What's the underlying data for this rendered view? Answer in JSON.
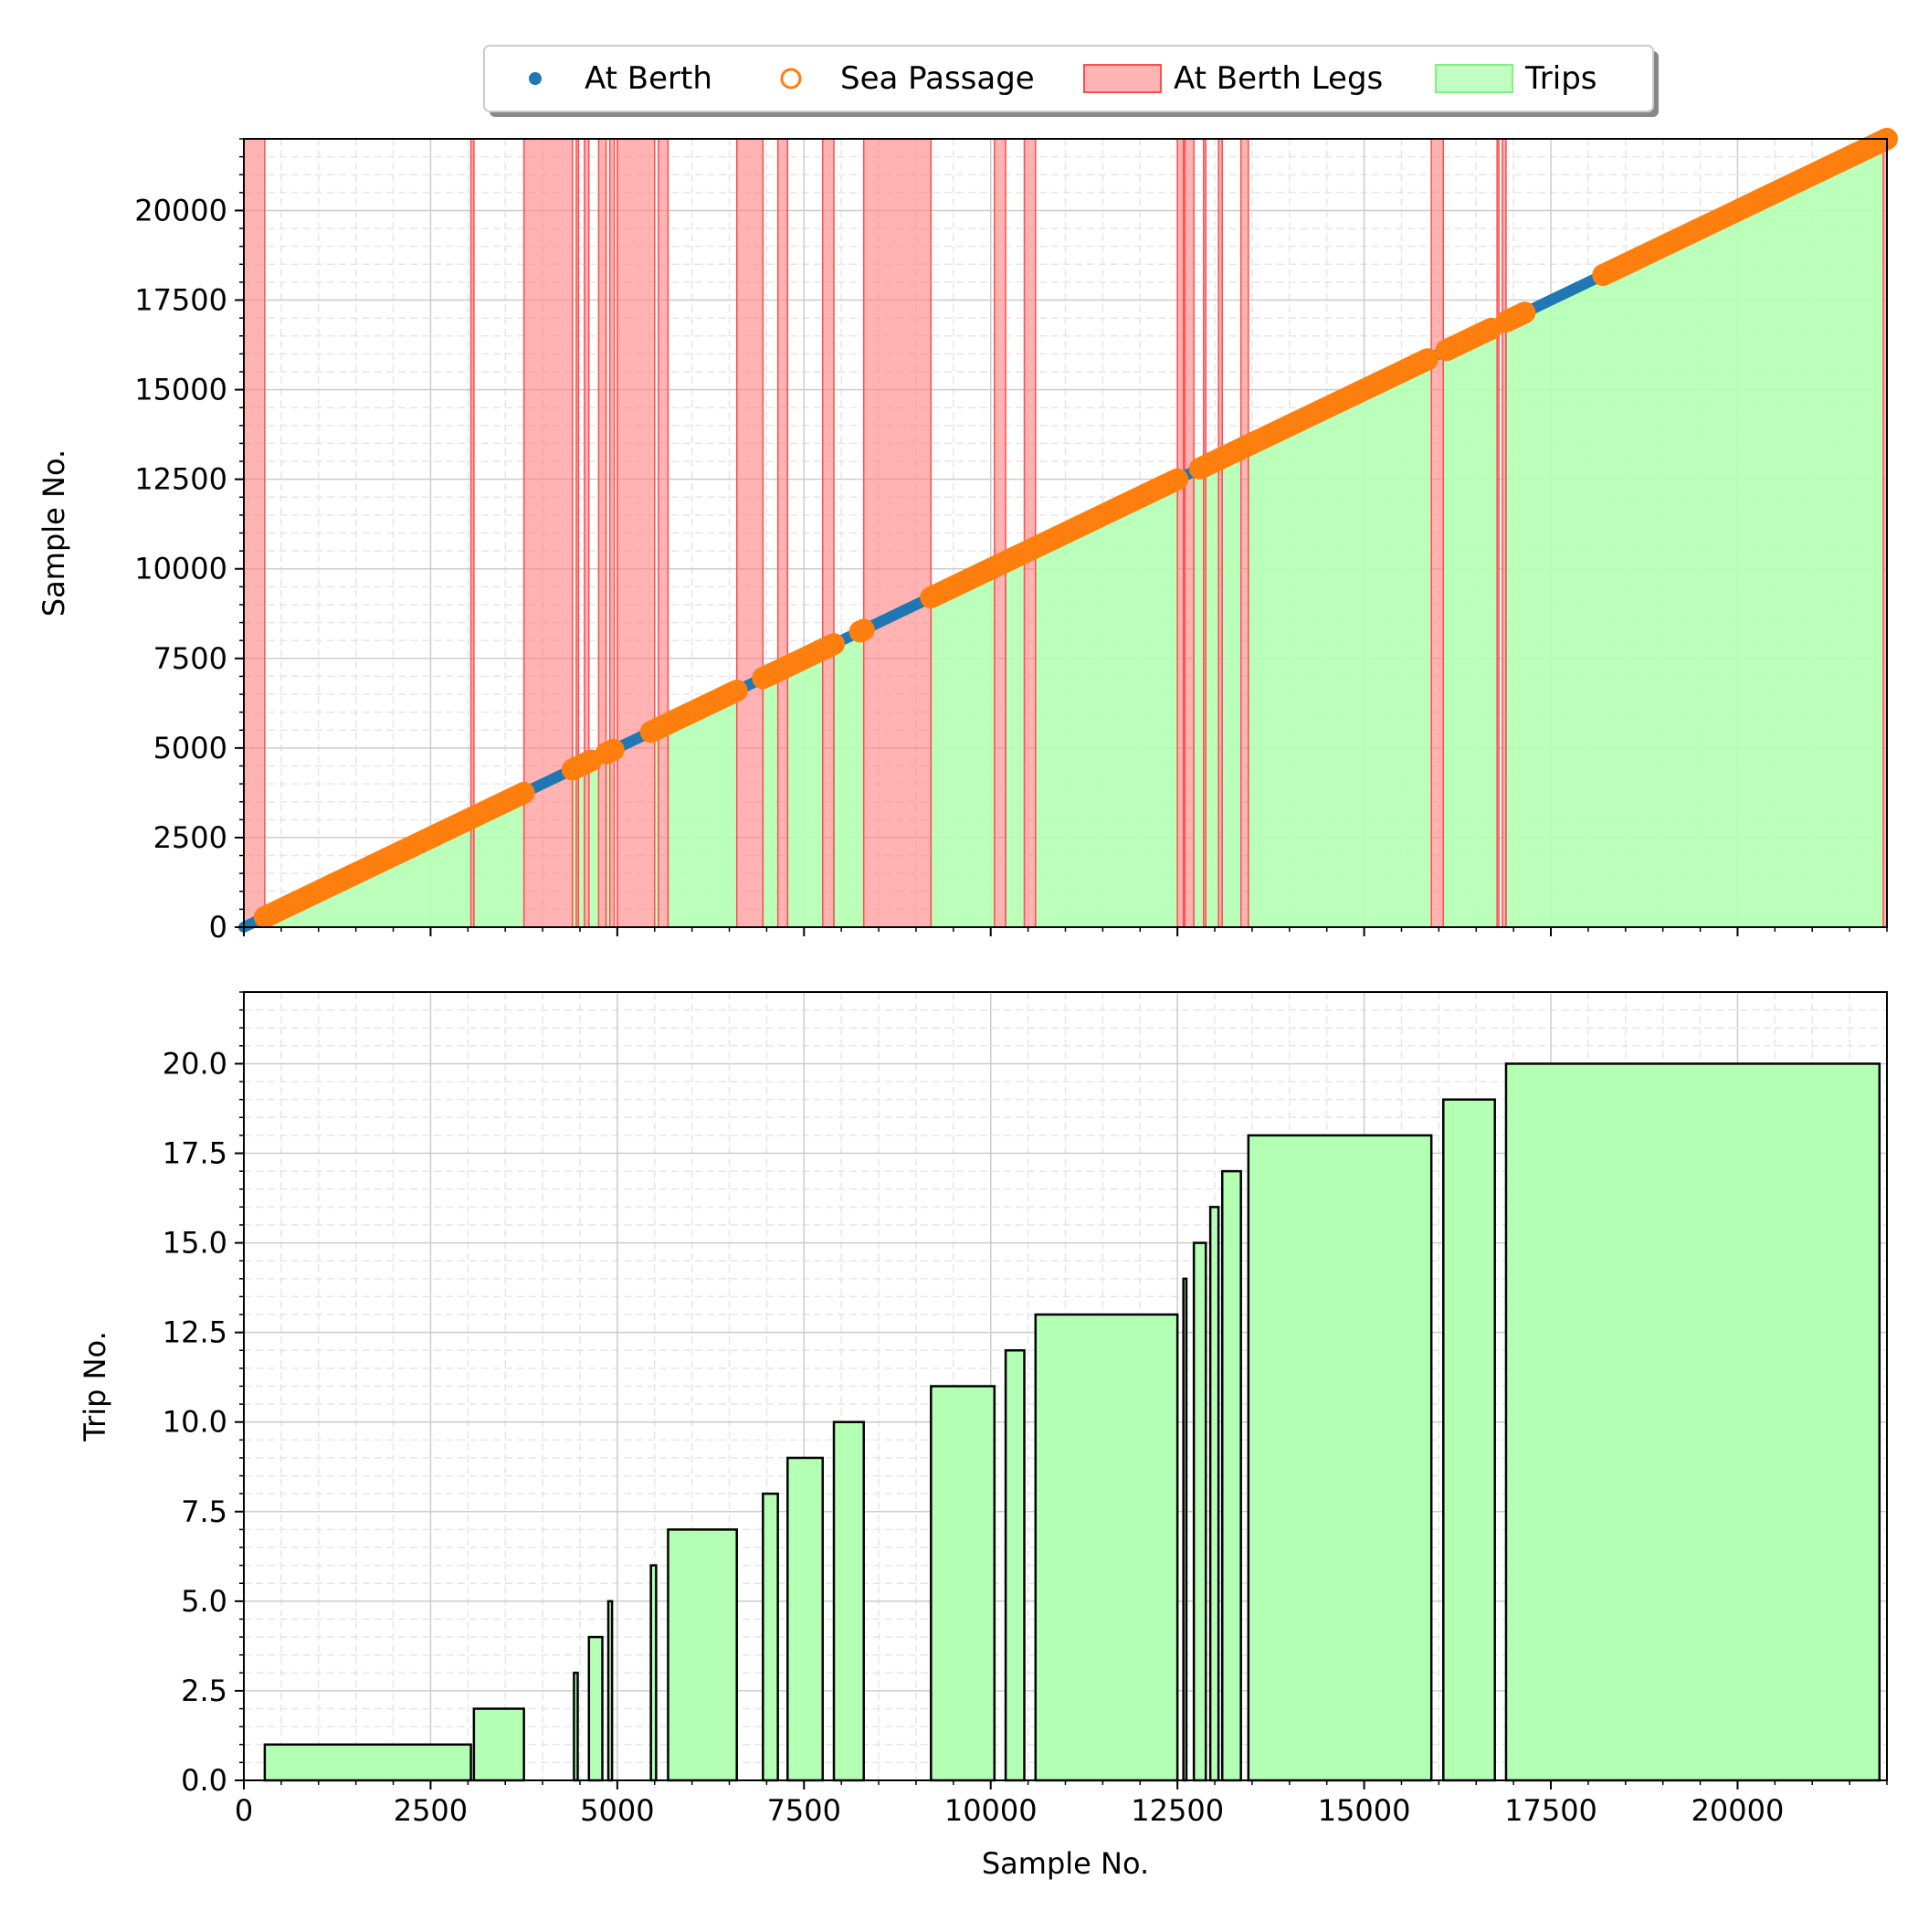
{
  "legend": {
    "placement": "top-center",
    "items": [
      {
        "label": "At Berth",
        "marker": "dot",
        "color": "#1f77b4"
      },
      {
        "label": "Sea Passage",
        "marker": "open-circle",
        "color": "#ff7f0e"
      },
      {
        "label": "At Berth Legs",
        "marker": "rect",
        "color": "#ff8080"
      },
      {
        "label": "Trips",
        "marker": "rect",
        "color": "#80f080"
      }
    ]
  },
  "colors": {
    "at_berth": "#1f77b4",
    "sea_passage": "#ff7f0e",
    "berth_leg_fill": "#ff8080",
    "berth_leg_edge": "#ff4d4d",
    "trip_fill": "#b3ffb3",
    "trip_edge": "#000000",
    "grid_major": "#cccccc",
    "grid_minor": "#e6e6e6"
  },
  "chart_data": [
    {
      "type": "scatter",
      "xlabel": "",
      "ylabel": "Sample No.",
      "xlim": [
        0,
        22000
      ],
      "ylim": [
        0,
        22000
      ],
      "xticks": [
        0,
        2500,
        5000,
        7500,
        10000,
        12500,
        15000,
        17500,
        20000
      ],
      "xticklabels_shown": false,
      "yticks": [
        0,
        2500,
        5000,
        7500,
        10000,
        12500,
        15000,
        17500,
        20000
      ],
      "yticklabels": [
        "0",
        "2500",
        "5000",
        "7500",
        "10000",
        "12500",
        "15000",
        "17500",
        "20000"
      ],
      "grid": true,
      "series": [
        {
          "name": "At Berth",
          "kind": "line",
          "segments": [
            [
              0,
              22000
            ]
          ]
        },
        {
          "name": "Sea Passage",
          "kind": "points",
          "segments": [
            [
              280,
              3750
            ],
            [
              4400,
              4650
            ],
            [
              4850,
              4950
            ],
            [
              5450,
              6600
            ],
            [
              6950,
              7900
            ],
            [
              8250,
              8300
            ],
            [
              9200,
              12500
            ],
            [
              12800,
              15850
            ],
            [
              16100,
              16700
            ],
            [
              16900,
              17150
            ],
            [
              18200,
              22000
            ]
          ]
        }
      ],
      "at_berth_legs": [
        [
          0,
          280
        ],
        [
          3040,
          3080
        ],
        [
          3750,
          4400
        ],
        [
          4450,
          4480
        ],
        [
          4560,
          4620
        ],
        [
          4750,
          4850
        ],
        [
          4900,
          4960
        ],
        [
          5000,
          5500
        ],
        [
          5550,
          5680
        ],
        [
          6600,
          6950
        ],
        [
          7150,
          7280
        ],
        [
          7750,
          7900
        ],
        [
          8300,
          9200
        ],
        [
          10050,
          10200
        ],
        [
          10450,
          10600
        ],
        [
          12500,
          12580
        ],
        [
          12600,
          12720
        ],
        [
          12850,
          12880
        ],
        [
          13050,
          13100
        ],
        [
          13350,
          13450
        ],
        [
          15900,
          16060
        ],
        [
          16780,
          16800
        ],
        [
          16850,
          16900
        ],
        [
          21950,
          22000
        ]
      ],
      "trips_area": [
        [
          280,
          3040
        ],
        [
          3080,
          3750
        ],
        [
          4400,
          4450
        ],
        [
          4480,
          4560
        ],
        [
          4620,
          4750
        ],
        [
          4850,
          4900
        ],
        [
          5500,
          5550
        ],
        [
          5680,
          6600
        ],
        [
          6950,
          7150
        ],
        [
          7280,
          7750
        ],
        [
          7900,
          8300
        ],
        [
          9200,
          10050
        ],
        [
          10200,
          10450
        ],
        [
          10600,
          12500
        ],
        [
          12580,
          12600
        ],
        [
          12720,
          12850
        ],
        [
          12880,
          13050
        ],
        [
          13100,
          13350
        ],
        [
          13450,
          15900
        ],
        [
          16060,
          16780
        ],
        [
          16900,
          21950
        ]
      ]
    },
    {
      "type": "bar",
      "xlabel": "Sample No.",
      "ylabel": "Trip No.",
      "xlim": [
        0,
        22000
      ],
      "ylim": [
        0,
        22
      ],
      "xticks": [
        0,
        2500,
        5000,
        7500,
        10000,
        12500,
        15000,
        17500,
        20000
      ],
      "xticklabels": [
        "0",
        "2500",
        "5000",
        "7500",
        "10000",
        "12500",
        "15000",
        "17500",
        "20000"
      ],
      "yticks": [
        0,
        2.5,
        5,
        7.5,
        10,
        12.5,
        15,
        17.5,
        20
      ],
      "yticklabels": [
        "0.0",
        "2.5",
        "5.0",
        "7.5",
        "10.0",
        "12.5",
        "15.0",
        "17.5",
        "20.0"
      ],
      "grid": true,
      "bars": [
        {
          "trip": 1,
          "start": 280,
          "end": 3040
        },
        {
          "trip": 2,
          "start": 3080,
          "end": 3750
        },
        {
          "trip": 3,
          "start": 4420,
          "end": 4470
        },
        {
          "trip": 4,
          "start": 4620,
          "end": 4800
        },
        {
          "trip": 5,
          "start": 4880,
          "end": 4930
        },
        {
          "trip": 6,
          "start": 5450,
          "end": 5520
        },
        {
          "trip": 7,
          "start": 5680,
          "end": 6600
        },
        {
          "trip": 8,
          "start": 6950,
          "end": 7150
        },
        {
          "trip": 9,
          "start": 7280,
          "end": 7750
        },
        {
          "trip": 10,
          "start": 7900,
          "end": 8300
        },
        {
          "trip": 11,
          "start": 9200,
          "end": 10050
        },
        {
          "trip": 12,
          "start": 10200,
          "end": 10450
        },
        {
          "trip": 13,
          "start": 10600,
          "end": 12500
        },
        {
          "trip": 14,
          "start": 12580,
          "end": 12620
        },
        {
          "trip": 15,
          "start": 12720,
          "end": 12880
        },
        {
          "trip": 16,
          "start": 12940,
          "end": 13050
        },
        {
          "trip": 17,
          "start": 13100,
          "end": 13350
        },
        {
          "trip": 18,
          "start": 13450,
          "end": 15900
        },
        {
          "trip": 19,
          "start": 16060,
          "end": 16750
        },
        {
          "trip": 20,
          "start": 16900,
          "end": 21900
        }
      ]
    }
  ]
}
